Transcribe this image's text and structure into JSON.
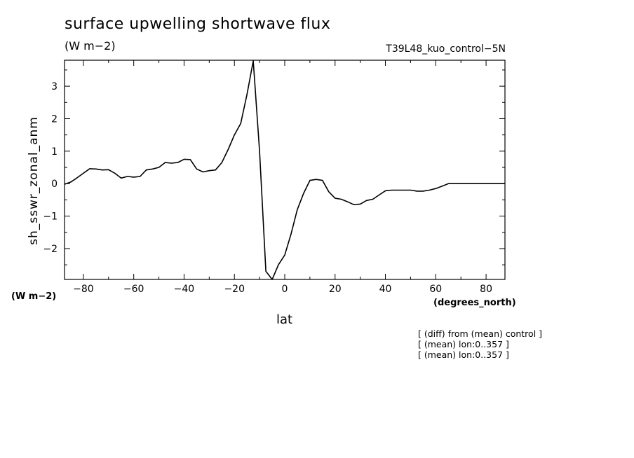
{
  "title": "surface upwelling shortwave flux",
  "units_top": "(W m−2)",
  "run_label": "T39L48_kuo_control−5N",
  "units_left": "(W m−2)",
  "x_units": "(degrees_north)",
  "notes": [
    "[ (diff) from (mean) control ]",
    "[ (mean) lon:0..357 ]",
    "[ (mean) lon:0..357 ]"
  ],
  "chart_data": {
    "type": "line",
    "title": "surface upwelling shortwave flux",
    "xlabel": "lat",
    "ylabel": "sh_sswr_zonal_anm",
    "xlim": [
      -87.5,
      87.5
    ],
    "ylim": [
      -2.95,
      3.8
    ],
    "x_ticks": [
      -80,
      -60,
      -40,
      -20,
      0,
      20,
      40,
      60,
      80
    ],
    "x_tick_labels": [
      "−80",
      "−60",
      "−40",
      "−20",
      "0",
      "20",
      "40",
      "60",
      "80"
    ],
    "y_ticks": [
      3,
      2,
      1,
      0,
      -1,
      -2
    ],
    "y_tick_labels": [
      "3",
      "2",
      "1",
      "0",
      "−1",
      "−2"
    ],
    "grid": false,
    "series": [
      {
        "x": [
          -87.5,
          -85,
          -82.5,
          -80,
          -77.5,
          -75,
          -72.5,
          -70,
          -67.5,
          -65,
          -62.5,
          -60,
          -57.5,
          -55,
          -52.5,
          -50,
          -47.5,
          -45,
          -42.5,
          -40,
          -37.5,
          -35,
          -32.5,
          -30,
          -27.5,
          -25,
          -22.5,
          -20,
          -17.5,
          -15,
          -12.5,
          -10,
          -7.5,
          -5,
          -2.5,
          0,
          2.5,
          5,
          7.5,
          10,
          12.5,
          15,
          17.5,
          20,
          22.5,
          25,
          27.5,
          30,
          32.5,
          35,
          37.5,
          40,
          42.5,
          45,
          47.5,
          50,
          52.5,
          55,
          57.5,
          60,
          62.5,
          65,
          67.5,
          70,
          72.5,
          75,
          77.5,
          80,
          82.5,
          85,
          87.5
        ],
        "values": [
          -0.02,
          0.05,
          0.18,
          0.32,
          0.46,
          0.45,
          0.42,
          0.43,
          0.32,
          0.17,
          0.22,
          0.2,
          0.22,
          0.42,
          0.45,
          0.5,
          0.65,
          0.63,
          0.65,
          0.75,
          0.74,
          0.45,
          0.36,
          0.4,
          0.42,
          0.65,
          1.05,
          1.5,
          1.85,
          2.75,
          3.78,
          1.0,
          -2.7,
          -2.95,
          -2.5,
          -2.2,
          -1.55,
          -0.8,
          -0.3,
          0.1,
          0.13,
          0.1,
          -0.25,
          -0.45,
          -0.48,
          -0.56,
          -0.65,
          -0.63,
          -0.52,
          -0.48,
          -0.35,
          -0.22,
          -0.2,
          -0.2,
          -0.2,
          -0.2,
          -0.23,
          -0.23,
          -0.2,
          -0.15,
          -0.08,
          0.0,
          0.0,
          0.0,
          0.0,
          0.0,
          0.0,
          0.0,
          0.0,
          0.0,
          0.0
        ]
      }
    ]
  }
}
